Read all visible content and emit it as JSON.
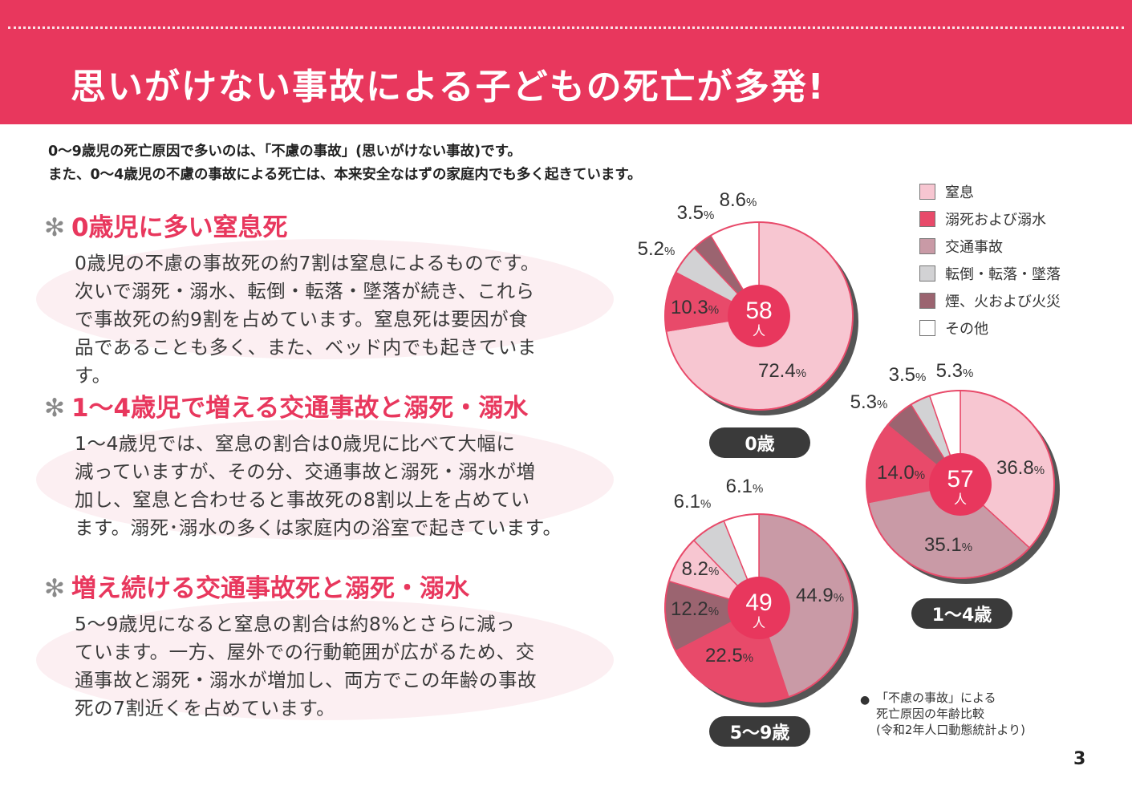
{
  "title": "思いがけない事故による子どもの死亡が多発!",
  "intro": [
    "0～9歳児の死亡原因で多いのは、「不慮の事故」(思いがけない事故)です。",
    "また、0～4歳児の不慮の事故による死亡は、本来安全なはずの家庭内でも多く起きています。"
  ],
  "sections": [
    {
      "heading": "0歳児に多い窒息死",
      "lines": [
        "0歳児の不慮の事故死の約7割は窒息によるものです。",
        "次いで溺死・溺水、転倒・転落・墜落が続き、これら",
        "で事故死の約9割を占めています。窒息死は要因が食",
        "品であることも多く、また、ベッド内でも起きています。"
      ]
    },
    {
      "heading": "1～4歳児で増える交通事故と溺死・溺水",
      "lines": [
        "1～4歳児では、窒息の割合は0歳児に比べて大幅に",
        "減っていますが、その分、交通事故と溺死・溺水が増",
        "加し、窒息と合わせると事故死の8割以上を占めてい",
        "ます。溺死･溺水の多くは家庭内の浴室で起きています。"
      ]
    },
    {
      "heading": "増え続ける交通事故死と溺死・溺水",
      "lines": [
        "5～9歳児になると窒息の割合は約8%とさらに減っ",
        "ています。一方、屋外での行動範囲が広がるため、交",
        "通事故と溺死・溺水が増加し、両方でこの年齢の事故",
        "死の7割近くを占めています。"
      ]
    }
  ],
  "colors": {
    "brand": "#e8375d",
    "窒息": "#f7c6d1",
    "溺死および溺水": "#e84a6a",
    "交通事故": "#c99aa6",
    "転倒・転落・墜落": "#d2d2d4",
    "煙、火および火災": "#9b6470",
    "その他": "#ffffff"
  },
  "chart_data": {
    "type": "pie",
    "legend": [
      "窒息",
      "溺死および溺水",
      "交通事故",
      "転倒・転落・墜落",
      "煙、火および火災",
      "その他"
    ],
    "unit": "%",
    "center_unit": "人",
    "charts": [
      {
        "age": "0歳",
        "total": "58",
        "slices": [
          {
            "category": "窒息",
            "value": 72.4
          },
          {
            "category": "溺死および溺水",
            "value": 10.3
          },
          {
            "category": "転倒・転落・墜落",
            "value": 5.2
          },
          {
            "category": "煙、火および火災",
            "value": 3.5
          },
          {
            "category": "その他",
            "value": 8.6
          }
        ]
      },
      {
        "age": "1～4歳",
        "total": "57",
        "slices": [
          {
            "category": "窒息",
            "value": 36.8
          },
          {
            "category": "交通事故",
            "value": 35.1
          },
          {
            "category": "溺死および溺水",
            "value": 14.0
          },
          {
            "category": "煙、火および火災",
            "value": 5.3
          },
          {
            "category": "転倒・転落・墜落",
            "value": 3.5
          },
          {
            "category": "その他",
            "value": 5.3
          }
        ]
      },
      {
        "age": "5～9歳",
        "total": "49",
        "slices": [
          {
            "category": "交通事故",
            "value": 44.9
          },
          {
            "category": "溺死および溺水",
            "value": 22.5
          },
          {
            "category": "煙、火および火災",
            "value": 12.2
          },
          {
            "category": "窒息",
            "value": 8.2
          },
          {
            "category": "転倒・転落・墜落",
            "value": 6.1
          },
          {
            "category": "その他",
            "value": 6.1
          }
        ]
      }
    ]
  },
  "source_note": [
    "「不慮の事故」による",
    "死亡原因の年齢比較",
    "(令和2年人口動態統計より)"
  ],
  "page_number": "3"
}
